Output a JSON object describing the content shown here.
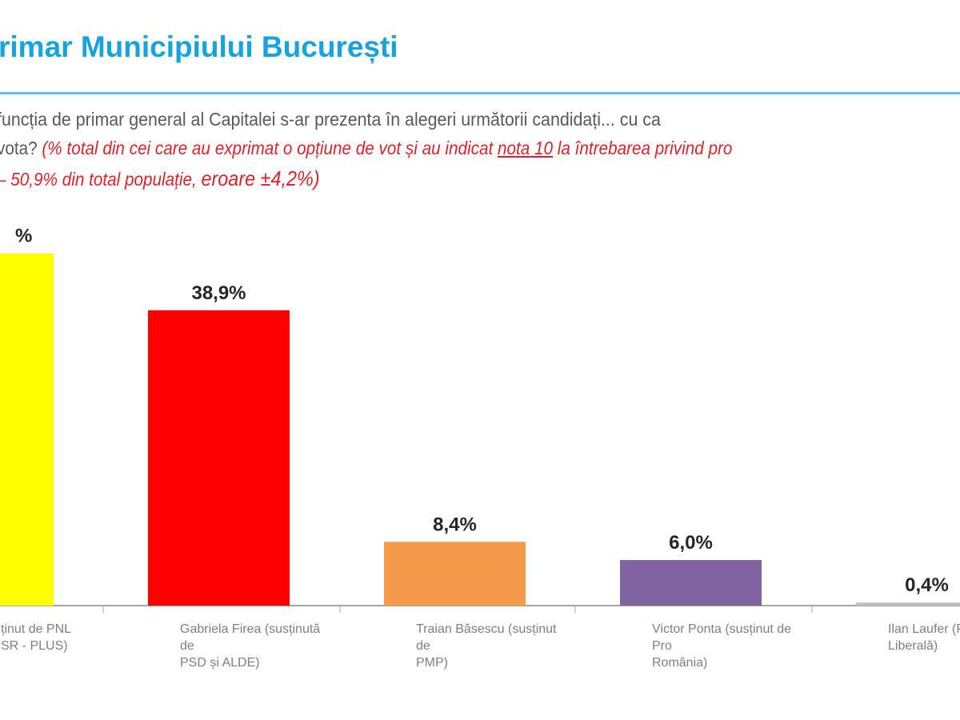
{
  "header": {
    "title": "rimar Municipiului București",
    "question_line1": "funcția de primar general al Capitalei s-ar prezenta în alegeri următorii candidați... cu ca",
    "question_line2_start": "vota? ",
    "note_a": "(% total  din cei care au exprimat o opțiune de vot și au indicat ",
    "note_underlined": "nota 10",
    "note_b": " la întrebarea privind pro",
    "note_line3_a": "– 50,9% din total populație, ",
    "note_line3_b": "eroare ±4,2%)"
  },
  "chart_data": {
    "type": "bar",
    "title": "rimar Municipiului București",
    "categories": [
      [
        "ținut de PNL",
        "SR - PLUS)"
      ],
      [
        "Gabriela Firea (susținută de",
        "PSD și ALDE)"
      ],
      [
        "Traian Băsescu (susținut de",
        "PMP)"
      ],
      [
        "Victor Ponta (susținut de Pro",
        "România)"
      ],
      [
        "Ilan Laufer (Platfor",
        "Liberală)"
      ]
    ],
    "values": [
      46.4,
      38.9,
      8.4,
      6.0,
      0.4
    ],
    "labels": [
      "%",
      "38,9%",
      "8,4%",
      "6,0%",
      "0,4%"
    ],
    "colors": [
      "#ffff00",
      "#ff0000",
      "#f59a4b",
      "#8064a2",
      "#bfbfbf"
    ],
    "ylim": [
      0,
      50
    ],
    "grid": false,
    "xlabel": "",
    "ylabel": ""
  }
}
